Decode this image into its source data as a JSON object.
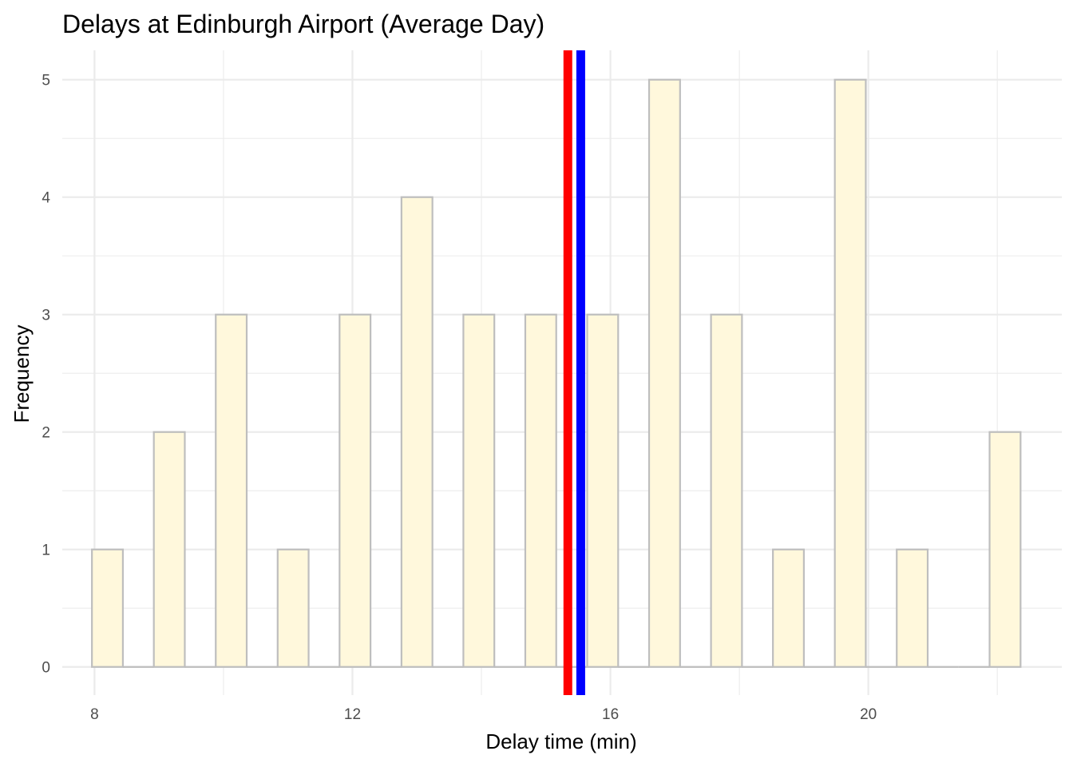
{
  "chart_data": {
    "type": "bar",
    "title": "Delays at Edinburgh Airport (Average Day)",
    "xlabel": "Delay time (min)",
    "ylabel": "Frequency",
    "xlim": [
      7.5,
      23
    ],
    "ylim": [
      -0.24,
      5.25
    ],
    "x_ticks": [
      8,
      12,
      16,
      20
    ],
    "y_ticks": [
      0,
      1,
      2,
      3,
      4,
      5
    ],
    "bin_width": 0.48,
    "bins": [
      {
        "x": 8.2,
        "count": 1
      },
      {
        "x": 9.16,
        "count": 2
      },
      {
        "x": 10.12,
        "count": 3
      },
      {
        "x": 11.08,
        "count": 1
      },
      {
        "x": 12.04,
        "count": 3
      },
      {
        "x": 13.0,
        "count": 4
      },
      {
        "x": 13.96,
        "count": 3
      },
      {
        "x": 14.92,
        "count": 3
      },
      {
        "x": 15.88,
        "count": 3
      },
      {
        "x": 16.84,
        "count": 5
      },
      {
        "x": 17.8,
        "count": 3
      },
      {
        "x": 18.76,
        "count": 1
      },
      {
        "x": 19.72,
        "count": 5
      },
      {
        "x": 20.68,
        "count": 1
      },
      {
        "x": 21.64,
        "count": 0
      },
      {
        "x": 22.12,
        "count": 2
      }
    ],
    "reference_lines": [
      {
        "x": 15.34,
        "color": "#ff0000"
      },
      {
        "x": 15.54,
        "color": "#0000ff"
      }
    ],
    "colors": {
      "bar_fill": "#fff8dc",
      "bar_outline": "#bebebe",
      "grid": "#ebebeb"
    },
    "grid": true
  }
}
